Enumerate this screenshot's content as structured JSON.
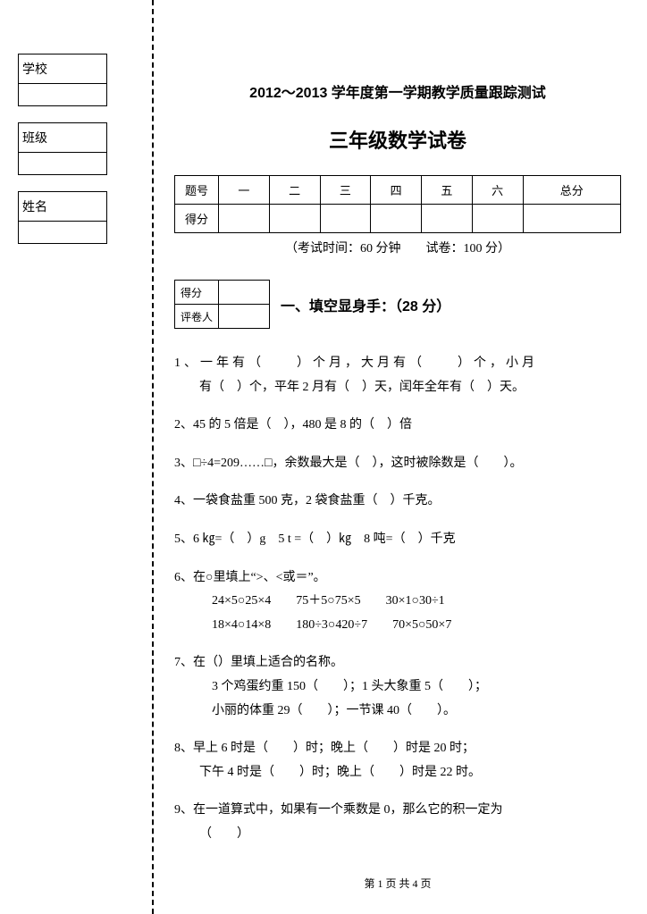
{
  "info_labels": [
    "学校",
    "班级",
    "姓名"
  ],
  "titles": {
    "line1": "2012～2013 学年度第一学期教学质量跟踪测试",
    "line2": "三年级数学试卷"
  },
  "score_table": {
    "row1_label": "题号",
    "cols": [
      "一",
      "二",
      "三",
      "四",
      "五",
      "六",
      "总分"
    ],
    "row2_label": "得分"
  },
  "exam_info": "（考试时间：60 分钟  试卷：100 分）",
  "mini_score": {
    "r1": "得分",
    "r2": "评卷人"
  },
  "section1_title": "一、填空显身手：（28 分）",
  "q": {
    "q1a": "1、一年有（  ）个月，大月有（  ）个，小月",
    "q1b": "有（ ）个，平年 2 月有（ ）天，闰年全年有（ ）天。",
    "q2": "2、45 的 5 倍是（ ），480 是 8 的（ ）倍",
    "q3": "3、□÷4=209……□，余数最大是（ ），这时被除数是（  ）。",
    "q4": "4、一袋食盐重 500 克，2 袋食盐重（ ）千克。",
    "q5": "5、6 ㎏=（ ）g 5 t =（ ）㎏ 8 吨=（ ）千克",
    "q6": "6、在○里填上“>、<或＝”。",
    "q6a": "24×5○25×4  75＋5○75×5  30×1○30÷1",
    "q6b": "18×4○14×8  180÷3○420÷7  70×5○50×7",
    "q7": "7、在（）里填上适合的名称。",
    "q7a": "3 个鸡蛋约重 150（  ）；1 头大象重 5（  ）；",
    "q7b": "小丽的体重 29（  ）；一节课 40（  ）。",
    "q8": "8、早上 6 时是（  ）时；晚上（  ）时是 20 时；",
    "q8a": "下午 4 时是（  ）时；晚上（  ）时是 22 时。",
    "q9": "9、在一道算式中，如果有一个乘数是 0，那么它的积一定为",
    "q9a": "（  ）"
  },
  "footer": "第 1 页 共 4 页"
}
